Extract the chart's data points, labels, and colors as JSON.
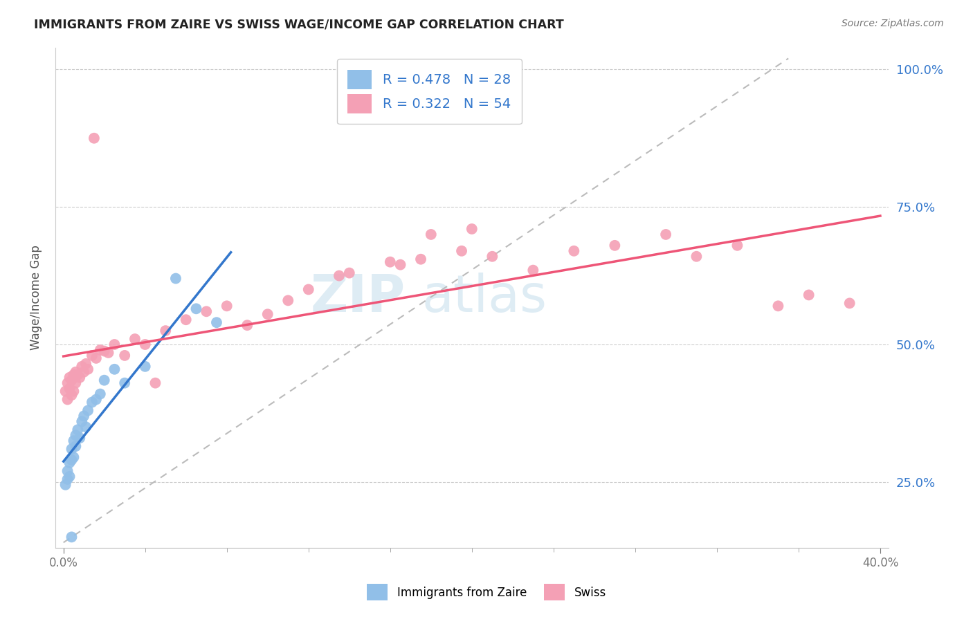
{
  "title": "IMMIGRANTS FROM ZAIRE VS SWISS WAGE/INCOME GAP CORRELATION CHART",
  "source": "Source: ZipAtlas.com",
  "ylabel": "Wage/Income Gap",
  "xlim": [
    -0.004,
    0.404
  ],
  "ylim": [
    0.13,
    1.04
  ],
  "yticks": [
    0.25,
    0.5,
    0.75,
    1.0
  ],
  "R_zaire": 0.478,
  "N_zaire": 28,
  "R_swiss": 0.322,
  "N_swiss": 54,
  "color_zaire": "#91bfe8",
  "color_swiss": "#f4a0b5",
  "color_zaire_line": "#3377cc",
  "color_swiss_line": "#ee5577",
  "color_ref_line": "#bbbbbb",
  "watermark_color": "#d0e4f0",
  "blue_x": [
    0.001,
    0.002,
    0.002,
    0.003,
    0.003,
    0.004,
    0.004,
    0.005,
    0.005,
    0.006,
    0.006,
    0.007,
    0.008,
    0.009,
    0.01,
    0.011,
    0.012,
    0.014,
    0.016,
    0.018,
    0.02,
    0.025,
    0.03,
    0.04,
    0.055,
    0.065,
    0.075,
    0.004
  ],
  "blue_y": [
    0.245,
    0.255,
    0.27,
    0.26,
    0.285,
    0.29,
    0.31,
    0.295,
    0.325,
    0.315,
    0.335,
    0.345,
    0.33,
    0.36,
    0.37,
    0.35,
    0.38,
    0.395,
    0.4,
    0.41,
    0.435,
    0.455,
    0.43,
    0.46,
    0.62,
    0.565,
    0.54,
    0.15
  ],
  "pink_x": [
    0.001,
    0.002,
    0.002,
    0.003,
    0.003,
    0.004,
    0.004,
    0.005,
    0.005,
    0.006,
    0.006,
    0.007,
    0.008,
    0.009,
    0.01,
    0.011,
    0.012,
    0.014,
    0.016,
    0.018,
    0.02,
    0.022,
    0.025,
    0.03,
    0.035,
    0.04,
    0.05,
    0.06,
    0.07,
    0.08,
    0.09,
    0.1,
    0.11,
    0.12,
    0.14,
    0.16,
    0.175,
    0.195,
    0.21,
    0.23,
    0.25,
    0.27,
    0.295,
    0.31,
    0.33,
    0.35,
    0.365,
    0.385,
    0.165,
    0.135,
    0.18,
    0.2,
    0.045,
    0.015
  ],
  "pink_y": [
    0.415,
    0.4,
    0.43,
    0.42,
    0.44,
    0.408,
    0.435,
    0.415,
    0.445,
    0.43,
    0.45,
    0.445,
    0.44,
    0.46,
    0.45,
    0.465,
    0.455,
    0.48,
    0.475,
    0.49,
    0.488,
    0.485,
    0.5,
    0.48,
    0.51,
    0.5,
    0.525,
    0.545,
    0.56,
    0.57,
    0.535,
    0.555,
    0.58,
    0.6,
    0.63,
    0.65,
    0.655,
    0.67,
    0.66,
    0.635,
    0.67,
    0.68,
    0.7,
    0.66,
    0.68,
    0.57,
    0.59,
    0.575,
    0.645,
    0.625,
    0.7,
    0.71,
    0.43,
    0.875
  ]
}
